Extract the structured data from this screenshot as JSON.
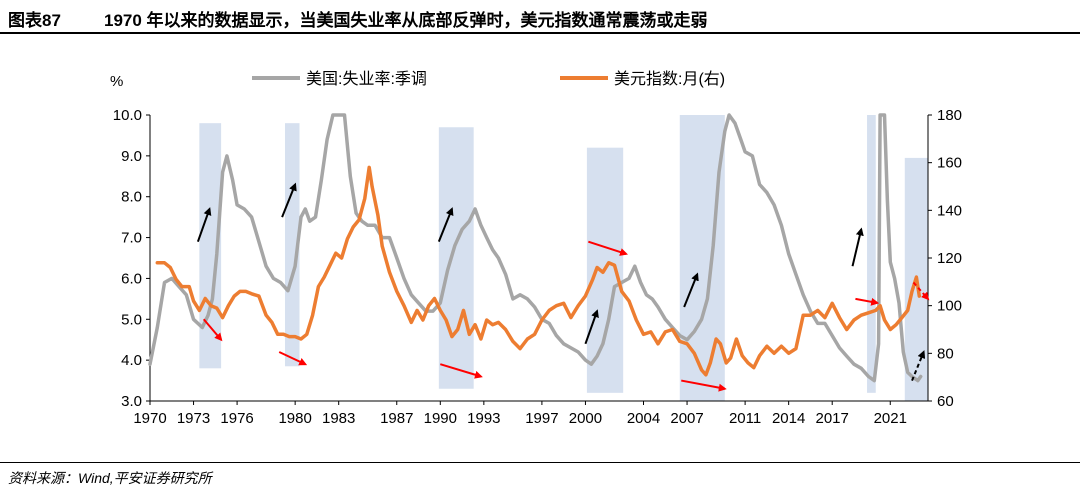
{
  "header": {
    "figure_number": "图表87",
    "title": "1970 年以来的数据显示，当美国失业率从底部反弹时，美元指数通常震荡或走弱"
  },
  "footer": {
    "source": "资料来源：Wind,平安证券研究所"
  },
  "colors": {
    "unemployment": "#a6a6a6",
    "dollar": "#ed7d31",
    "shade": "#d6e0ef",
    "arrow_black": "#000000",
    "arrow_red": "#ff0000"
  },
  "chart_data": {
    "type": "line",
    "left_unit": "%",
    "xlim": [
      1970,
      2023.6
    ],
    "ylim_left": [
      3.0,
      10.0
    ],
    "ylim_right": [
      60,
      180
    ],
    "left_ticks": [
      "3.0",
      "4.0",
      "5.0",
      "6.0",
      "7.0",
      "8.0",
      "9.0",
      "10.0"
    ],
    "right_ticks": [
      "60",
      "80",
      "100",
      "120",
      "140",
      "160",
      "180"
    ],
    "x_ticks": [
      "1970",
      "1973",
      "1976",
      "1980",
      "1983",
      "1987",
      "1990",
      "1993",
      "1997",
      "2000",
      "2004",
      "2007",
      "2011",
      "2014",
      "2017",
      "2021"
    ],
    "legend": [
      "美国:失业率:季调",
      "美元指数:月(右)"
    ],
    "shaded_periods": [
      {
        "x": [
          1973.4,
          1974.9
        ],
        "top": 9.8,
        "bottom": 3.8
      },
      {
        "x": [
          1979.3,
          1980.3
        ],
        "top": 9.8,
        "bottom": 3.85
      },
      {
        "x": [
          1989.9,
          1992.3
        ],
        "top": 9.7,
        "bottom": 3.3
      },
      {
        "x": [
          2000.1,
          2002.6
        ],
        "top": 9.2,
        "bottom": 3.2
      },
      {
        "x": [
          2006.5,
          2009.6
        ],
        "top": 10.0,
        "bottom": 3.0
      },
      {
        "x": [
          2019.4,
          2020.0
        ],
        "top": 10.0,
        "bottom": 3.2
      },
      {
        "x": [
          2022.0,
          2023.6
        ],
        "top": 8.95,
        "bottom": 3.0
      }
    ],
    "series": [
      {
        "name": "美国:失业率:季调",
        "axis": "left",
        "points": [
          [
            1970.0,
            3.9
          ],
          [
            1970.5,
            4.8
          ],
          [
            1971.0,
            5.9
          ],
          [
            1971.5,
            6.0
          ],
          [
            1972.0,
            5.8
          ],
          [
            1972.5,
            5.6
          ],
          [
            1973.0,
            5.0
          ],
          [
            1973.6,
            4.8
          ],
          [
            1974.0,
            5.1
          ],
          [
            1974.3,
            5.5
          ],
          [
            1974.6,
            6.6
          ],
          [
            1975.0,
            8.6
          ],
          [
            1975.3,
            9.0
          ],
          [
            1975.7,
            8.4
          ],
          [
            1976.0,
            7.8
          ],
          [
            1976.5,
            7.7
          ],
          [
            1977.0,
            7.5
          ],
          [
            1977.5,
            6.9
          ],
          [
            1978.0,
            6.3
          ],
          [
            1978.5,
            6.0
          ],
          [
            1979.0,
            5.9
          ],
          [
            1979.5,
            5.7
          ],
          [
            1980.0,
            6.3
          ],
          [
            1980.4,
            7.5
          ],
          [
            1980.7,
            7.7
          ],
          [
            1981.0,
            7.4
          ],
          [
            1981.4,
            7.5
          ],
          [
            1981.8,
            8.4
          ],
          [
            1982.2,
            9.4
          ],
          [
            1982.6,
            10.0
          ],
          [
            1983.0,
            10.0
          ],
          [
            1983.4,
            10.0
          ],
          [
            1983.8,
            8.5
          ],
          [
            1984.2,
            7.6
          ],
          [
            1984.6,
            7.4
          ],
          [
            1985.0,
            7.3
          ],
          [
            1985.5,
            7.3
          ],
          [
            1986.0,
            7.0
          ],
          [
            1986.5,
            7.0
          ],
          [
            1987.0,
            6.5
          ],
          [
            1987.5,
            6.0
          ],
          [
            1988.0,
            5.6
          ],
          [
            1988.5,
            5.4
          ],
          [
            1989.0,
            5.2
          ],
          [
            1989.5,
            5.2
          ],
          [
            1990.0,
            5.4
          ],
          [
            1990.5,
            6.2
          ],
          [
            1991.0,
            6.8
          ],
          [
            1991.5,
            7.2
          ],
          [
            1992.0,
            7.4
          ],
          [
            1992.4,
            7.7
          ],
          [
            1992.8,
            7.3
          ],
          [
            1993.2,
            7.0
          ],
          [
            1993.6,
            6.7
          ],
          [
            1994.0,
            6.5
          ],
          [
            1994.5,
            6.1
          ],
          [
            1995.0,
            5.5
          ],
          [
            1995.5,
            5.6
          ],
          [
            1996.0,
            5.5
          ],
          [
            1996.5,
            5.3
          ],
          [
            1997.0,
            5.0
          ],
          [
            1997.5,
            4.9
          ],
          [
            1998.0,
            4.6
          ],
          [
            1998.5,
            4.4
          ],
          [
            1999.0,
            4.3
          ],
          [
            1999.5,
            4.2
          ],
          [
            2000.0,
            4.0
          ],
          [
            2000.4,
            3.9
          ],
          [
            2000.8,
            4.1
          ],
          [
            2001.2,
            4.4
          ],
          [
            2001.6,
            5.0
          ],
          [
            2002.0,
            5.8
          ],
          [
            2002.5,
            5.9
          ],
          [
            2003.0,
            6.0
          ],
          [
            2003.4,
            6.3
          ],
          [
            2003.8,
            5.9
          ],
          [
            2004.2,
            5.6
          ],
          [
            2004.6,
            5.5
          ],
          [
            2005.0,
            5.3
          ],
          [
            2005.5,
            5.0
          ],
          [
            2006.0,
            4.8
          ],
          [
            2006.5,
            4.6
          ],
          [
            2007.0,
            4.5
          ],
          [
            2007.5,
            4.7
          ],
          [
            2008.0,
            5.0
          ],
          [
            2008.4,
            5.5
          ],
          [
            2008.8,
            6.8
          ],
          [
            2009.2,
            8.6
          ],
          [
            2009.6,
            9.6
          ],
          [
            2009.9,
            10.0
          ],
          [
            2010.3,
            9.8
          ],
          [
            2010.7,
            9.4
          ],
          [
            2011.0,
            9.1
          ],
          [
            2011.5,
            9.0
          ],
          [
            2012.0,
            8.3
          ],
          [
            2012.5,
            8.1
          ],
          [
            2013.0,
            7.8
          ],
          [
            2013.5,
            7.3
          ],
          [
            2014.0,
            6.6
          ],
          [
            2014.5,
            6.1
          ],
          [
            2015.0,
            5.6
          ],
          [
            2015.5,
            5.2
          ],
          [
            2016.0,
            4.9
          ],
          [
            2016.5,
            4.9
          ],
          [
            2017.0,
            4.6
          ],
          [
            2017.5,
            4.3
          ],
          [
            2018.0,
            4.1
          ],
          [
            2018.5,
            3.9
          ],
          [
            2019.0,
            3.8
          ],
          [
            2019.5,
            3.6
          ],
          [
            2019.9,
            3.5
          ],
          [
            2020.2,
            4.4
          ],
          [
            2020.3,
            10.0
          ],
          [
            2020.6,
            10.0
          ],
          [
            2020.8,
            7.9
          ],
          [
            2021.0,
            6.4
          ],
          [
            2021.3,
            6.0
          ],
          [
            2021.6,
            5.4
          ],
          [
            2021.9,
            4.2
          ],
          [
            2022.2,
            3.7
          ],
          [
            2022.5,
            3.6
          ],
          [
            2022.9,
            3.5
          ],
          [
            2023.1,
            3.6
          ]
        ]
      },
      {
        "name": "美元指数:月(右)",
        "axis": "right",
        "points": [
          [
            1970.5,
            118
          ],
          [
            1971.0,
            118
          ],
          [
            1971.4,
            116
          ],
          [
            1971.8,
            111
          ],
          [
            1972.2,
            108
          ],
          [
            1972.7,
            108
          ],
          [
            1973.0,
            102
          ],
          [
            1973.4,
            98
          ],
          [
            1973.8,
            103
          ],
          [
            1974.2,
            100
          ],
          [
            1974.6,
            99
          ],
          [
            1975.0,
            95
          ],
          [
            1975.4,
            100
          ],
          [
            1975.8,
            104
          ],
          [
            1976.2,
            106
          ],
          [
            1976.6,
            106
          ],
          [
            1977.0,
            105
          ],
          [
            1977.5,
            104
          ],
          [
            1978.0,
            96
          ],
          [
            1978.4,
            93
          ],
          [
            1978.8,
            88
          ],
          [
            1979.2,
            88
          ],
          [
            1979.6,
            87
          ],
          [
            1980.0,
            87
          ],
          [
            1980.4,
            86
          ],
          [
            1980.8,
            88
          ],
          [
            1981.2,
            96
          ],
          [
            1981.6,
            108
          ],
          [
            1982.0,
            112
          ],
          [
            1982.4,
            117
          ],
          [
            1982.8,
            122
          ],
          [
            1983.2,
            120
          ],
          [
            1983.6,
            128
          ],
          [
            1984.0,
            133
          ],
          [
            1984.4,
            136
          ],
          [
            1984.8,
            145
          ],
          [
            1985.1,
            158
          ],
          [
            1985.3,
            150
          ],
          [
            1985.7,
            138
          ],
          [
            1986.0,
            125
          ],
          [
            1986.5,
            114
          ],
          [
            1987.0,
            106
          ],
          [
            1987.5,
            100
          ],
          [
            1988.0,
            93
          ],
          [
            1988.4,
            98
          ],
          [
            1988.8,
            94
          ],
          [
            1989.2,
            100
          ],
          [
            1989.6,
            103
          ],
          [
            1990.0,
            98
          ],
          [
            1990.4,
            94
          ],
          [
            1990.8,
            87
          ],
          [
            1991.2,
            90
          ],
          [
            1991.6,
            98
          ],
          [
            1992.0,
            88
          ],
          [
            1992.4,
            92
          ],
          [
            1992.8,
            86
          ],
          [
            1993.2,
            94
          ],
          [
            1993.6,
            92
          ],
          [
            1994.0,
            93
          ],
          [
            1994.5,
            90
          ],
          [
            1995.0,
            85
          ],
          [
            1995.5,
            82
          ],
          [
            1996.0,
            86
          ],
          [
            1996.5,
            88
          ],
          [
            1997.0,
            94
          ],
          [
            1997.5,
            98
          ],
          [
            1998.0,
            100
          ],
          [
            1998.5,
            101
          ],
          [
            1999.0,
            95
          ],
          [
            1999.5,
            100
          ],
          [
            2000.0,
            104
          ],
          [
            2000.5,
            111
          ],
          [
            2000.8,
            116
          ],
          [
            2001.2,
            114
          ],
          [
            2001.6,
            118
          ],
          [
            2002.0,
            117
          ],
          [
            2002.5,
            106
          ],
          [
            2003.0,
            102
          ],
          [
            2003.5,
            94
          ],
          [
            2004.0,
            88
          ],
          [
            2004.5,
            89
          ],
          [
            2005.0,
            84
          ],
          [
            2005.5,
            89
          ],
          [
            2006.0,
            90
          ],
          [
            2006.5,
            85
          ],
          [
            2007.0,
            84
          ],
          [
            2007.5,
            80
          ],
          [
            2008.0,
            73
          ],
          [
            2008.3,
            71
          ],
          [
            2008.6,
            76
          ],
          [
            2009.0,
            86
          ],
          [
            2009.3,
            84
          ],
          [
            2009.7,
            76
          ],
          [
            2010.0,
            78
          ],
          [
            2010.4,
            86
          ],
          [
            2010.8,
            79
          ],
          [
            2011.2,
            76
          ],
          [
            2011.6,
            74
          ],
          [
            2012.0,
            79
          ],
          [
            2012.5,
            83
          ],
          [
            2013.0,
            80
          ],
          [
            2013.5,
            83
          ],
          [
            2014.0,
            80
          ],
          [
            2014.5,
            82
          ],
          [
            2015.0,
            96
          ],
          [
            2015.5,
            96
          ],
          [
            2016.0,
            98
          ],
          [
            2016.5,
            95
          ],
          [
            2017.0,
            101
          ],
          [
            2017.5,
            95
          ],
          [
            2018.0,
            90
          ],
          [
            2018.5,
            94
          ],
          [
            2019.0,
            96
          ],
          [
            2019.5,
            97
          ],
          [
            2020.0,
            98
          ],
          [
            2020.3,
            100
          ],
          [
            2020.6,
            94
          ],
          [
            2021.0,
            90
          ],
          [
            2021.4,
            92
          ],
          [
            2021.8,
            95
          ],
          [
            2022.2,
            98
          ],
          [
            2022.5,
            106
          ],
          [
            2022.8,
            112
          ],
          [
            2023.0,
            104
          ]
        ]
      }
    ],
    "annotations": [
      {
        "type": "arrow",
        "color": "black",
        "from": [
          1973.3,
          6.9
        ],
        "to": [
          1974.1,
          7.7
        ]
      },
      {
        "type": "arrow",
        "color": "black",
        "from": [
          1979.1,
          7.5
        ],
        "to": [
          1980.0,
          8.3
        ]
      },
      {
        "type": "arrow",
        "color": "black",
        "from": [
          1989.9,
          6.9
        ],
        "to": [
          1990.8,
          7.7
        ]
      },
      {
        "type": "arrow",
        "color": "black",
        "from": [
          2000.0,
          4.4
        ],
        "to": [
          2000.8,
          5.2
        ]
      },
      {
        "type": "arrow",
        "color": "black",
        "from": [
          2006.8,
          5.3
        ],
        "to": [
          2007.7,
          6.1
        ]
      },
      {
        "type": "arrow",
        "color": "black",
        "from": [
          2018.4,
          6.3
        ],
        "to": [
          2019.0,
          7.2
        ]
      },
      {
        "type": "arrow",
        "color": "black",
        "dashed": true,
        "from": [
          2022.5,
          3.5
        ],
        "to": [
          2023.3,
          4.2
        ]
      },
      {
        "type": "arrow",
        "color": "red",
        "from": [
          1973.7,
          5.0
        ],
        "to": [
          1974.9,
          4.5
        ]
      },
      {
        "type": "arrow",
        "color": "red",
        "from": [
          1978.9,
          4.2
        ],
        "to": [
          1980.7,
          3.9
        ]
      },
      {
        "type": "arrow",
        "color": "red",
        "from": [
          1990.0,
          3.9
        ],
        "to": [
          1992.8,
          3.6
        ]
      },
      {
        "type": "arrow",
        "color": "red",
        "from": [
          2000.2,
          6.9
        ],
        "to": [
          2002.8,
          6.6
        ]
      },
      {
        "type": "arrow",
        "color": "red",
        "from": [
          2006.6,
          3.5
        ],
        "to": [
          2009.6,
          3.3
        ]
      },
      {
        "type": "arrow",
        "color": "red",
        "from": [
          2018.6,
          5.5
        ],
        "to": [
          2020.1,
          5.4
        ]
      },
      {
        "type": "arrow",
        "color": "red",
        "dashed": true,
        "from": [
          2022.6,
          5.9
        ],
        "to": [
          2023.6,
          5.5
        ]
      }
    ]
  }
}
